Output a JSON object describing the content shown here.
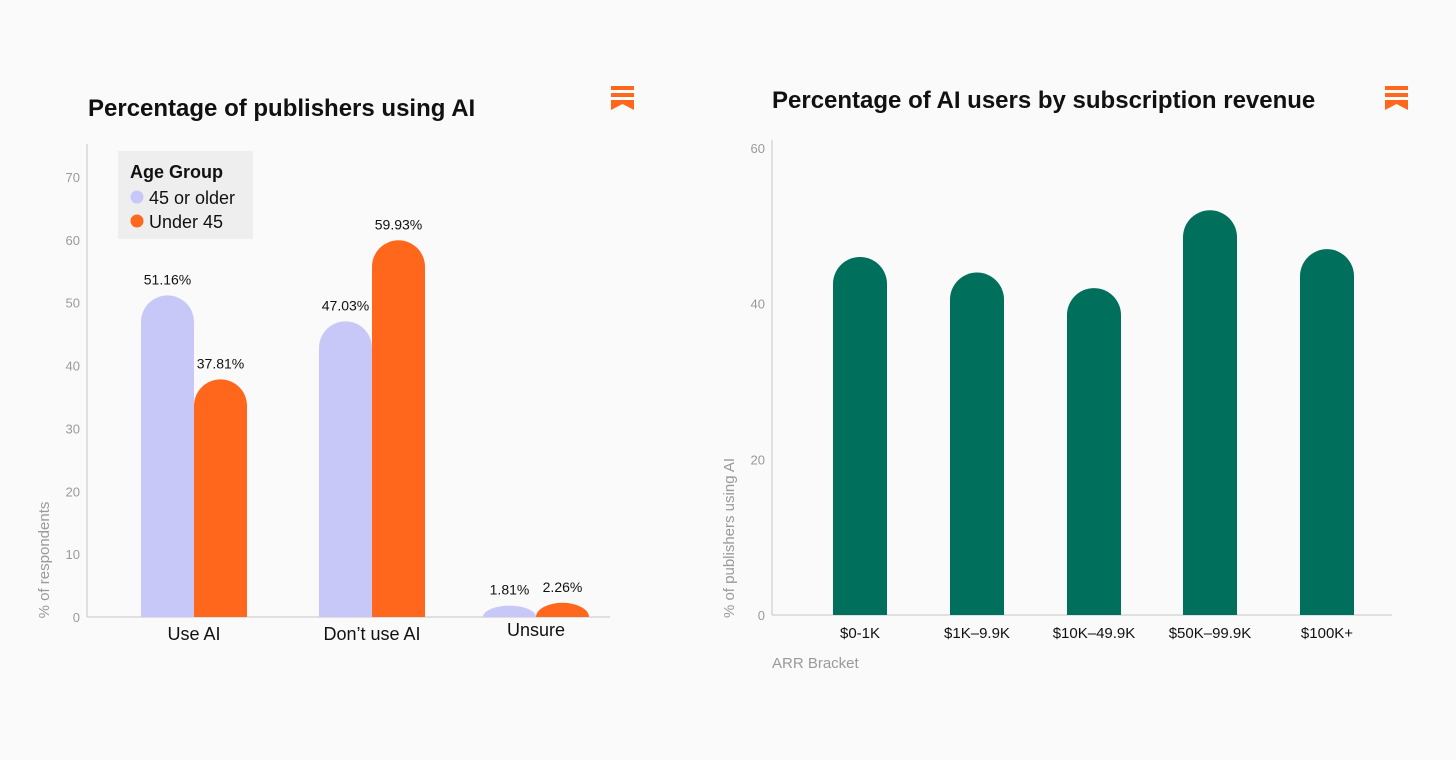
{
  "colors": {
    "background": "#fafafa",
    "series_older": "#c8c8f8",
    "series_under": "#ff671d",
    "bar_green": "#006f5c",
    "axis": "#c7c7c7",
    "brand_icon": "#ff671d"
  },
  "icons": {
    "brand": "bookmark-logo-icon"
  },
  "chart_data": [
    {
      "type": "bar",
      "title": "Percentage of publishers using AI",
      "ylabel": "% of respondents",
      "xlabel": "",
      "ylim": [
        0,
        75
      ],
      "yticks": [
        0,
        10,
        20,
        30,
        40,
        50,
        60,
        70
      ],
      "categories": [
        "Use AI",
        "Don’t use AI",
        "Unsure"
      ],
      "legend": {
        "title": "Age Group",
        "position": "top-left"
      },
      "series": [
        {
          "name": "45 or older",
          "values": [
            51.16,
            47.03,
            1.81
          ],
          "labels": [
            "51.16%",
            "47.03%",
            "1.81%"
          ]
        },
        {
          "name": "Under 45",
          "values": [
            37.81,
            59.93,
            2.26
          ],
          "labels": [
            "37.81%",
            "59.93%",
            "2.26%"
          ]
        }
      ],
      "grid": false
    },
    {
      "type": "bar",
      "title": "Percentage of AI users by subscription revenue",
      "ylabel": "% of publishers using AI",
      "xlabel": "ARR Bracket",
      "ylim": [
        0,
        60
      ],
      "yticks": [
        0,
        20,
        40,
        60
      ],
      "categories": [
        "$0-1K",
        "$1K–9.9K",
        "$10K–49.9K",
        "$50K–99.9K",
        "$100K+"
      ],
      "values": [
        46,
        44,
        42,
        52,
        47
      ],
      "grid": false
    }
  ]
}
